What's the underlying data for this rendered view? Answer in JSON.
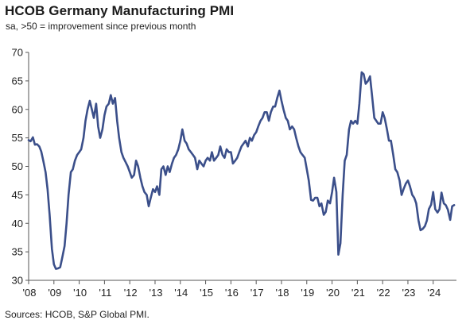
{
  "title": "HCOB Germany Manufacturing PMI",
  "subtitle": "sa, >50 = improvement since previous month",
  "source": "Sources: HCOB, S&P Global PMI.",
  "colors": {
    "line": "#3b4f8a",
    "axis": "#555555",
    "grid": "#d9d9d9"
  },
  "chart_data": {
    "type": "line",
    "title": "HCOB Germany Manufacturing PMI",
    "subtitle": "sa, >50 = improvement since previous month",
    "xlabel": "",
    "ylabel": "",
    "ylim": [
      30,
      70
    ],
    "yticks": [
      30,
      35,
      40,
      45,
      50,
      55,
      60,
      65,
      70
    ],
    "xlim": [
      2008.0,
      2024.92
    ],
    "xtick_values": [
      2008,
      2009,
      2010,
      2011,
      2012,
      2013,
      2014,
      2015,
      2016,
      2017,
      2018,
      2019,
      2020,
      2021,
      2022,
      2023,
      2024
    ],
    "xtick_labels": [
      "'08",
      "'09",
      "'10",
      "'11",
      "'12",
      "'13",
      "'14",
      "'15",
      "'16",
      "'17",
      "'18",
      "'19",
      "'20",
      "'21",
      "'22",
      "'23",
      "'24"
    ],
    "grid": false,
    "series": [
      {
        "points": [
          [
            2008.0,
            54.6
          ],
          [
            2008.08,
            54.4
          ],
          [
            2008.17,
            55.1
          ],
          [
            2008.25,
            53.8
          ],
          [
            2008.33,
            53.9
          ],
          [
            2008.42,
            53.5
          ],
          [
            2008.5,
            52.6
          ],
          [
            2008.58,
            51.0
          ],
          [
            2008.67,
            49.0
          ],
          [
            2008.75,
            46.0
          ],
          [
            2008.83,
            41.5
          ],
          [
            2008.92,
            35.5
          ],
          [
            2009.0,
            32.8
          ],
          [
            2009.08,
            32.0
          ],
          [
            2009.17,
            32.1
          ],
          [
            2009.25,
            32.3
          ],
          [
            2009.33,
            34.0
          ],
          [
            2009.42,
            36.0
          ],
          [
            2009.5,
            40.0
          ],
          [
            2009.58,
            45.0
          ],
          [
            2009.67,
            49.0
          ],
          [
            2009.75,
            49.5
          ],
          [
            2009.83,
            51.0
          ],
          [
            2009.92,
            52.0
          ],
          [
            2010.0,
            52.5
          ],
          [
            2010.08,
            53.0
          ],
          [
            2010.17,
            55.0
          ],
          [
            2010.25,
            58.0
          ],
          [
            2010.33,
            60.0
          ],
          [
            2010.42,
            61.5
          ],
          [
            2010.5,
            60.0
          ],
          [
            2010.58,
            58.5
          ],
          [
            2010.67,
            61.0
          ],
          [
            2010.75,
            57.0
          ],
          [
            2010.83,
            55.0
          ],
          [
            2010.92,
            56.5
          ],
          [
            2011.0,
            59.0
          ],
          [
            2011.08,
            60.5
          ],
          [
            2011.17,
            61.0
          ],
          [
            2011.25,
            62.5
          ],
          [
            2011.33,
            61.0
          ],
          [
            2011.42,
            62.0
          ],
          [
            2011.5,
            58.0
          ],
          [
            2011.58,
            55.0
          ],
          [
            2011.67,
            52.5
          ],
          [
            2011.75,
            51.5
          ],
          [
            2011.83,
            50.8
          ],
          [
            2011.92,
            50.0
          ],
          [
            2012.0,
            49.0
          ],
          [
            2012.08,
            48.0
          ],
          [
            2012.17,
            48.5
          ],
          [
            2012.25,
            51.0
          ],
          [
            2012.33,
            50.0
          ],
          [
            2012.42,
            48.0
          ],
          [
            2012.5,
            46.5
          ],
          [
            2012.58,
            45.5
          ],
          [
            2012.67,
            45.0
          ],
          [
            2012.75,
            43.0
          ],
          [
            2012.83,
            44.5
          ],
          [
            2012.92,
            46.0
          ],
          [
            2013.0,
            45.5
          ],
          [
            2013.08,
            46.5
          ],
          [
            2013.17,
            45.0
          ],
          [
            2013.25,
            49.5
          ],
          [
            2013.33,
            50.0
          ],
          [
            2013.42,
            48.5
          ],
          [
            2013.5,
            50.0
          ],
          [
            2013.58,
            49.0
          ],
          [
            2013.67,
            50.5
          ],
          [
            2013.75,
            51.5
          ],
          [
            2013.83,
            52.0
          ],
          [
            2013.92,
            53.0
          ],
          [
            2014.0,
            54.5
          ],
          [
            2014.08,
            56.5
          ],
          [
            2014.17,
            54.5
          ],
          [
            2014.25,
            54.0
          ],
          [
            2014.33,
            53.0
          ],
          [
            2014.42,
            52.5
          ],
          [
            2014.5,
            52.0
          ],
          [
            2014.58,
            51.5
          ],
          [
            2014.67,
            49.5
          ],
          [
            2014.75,
            51.0
          ],
          [
            2014.83,
            50.5
          ],
          [
            2014.92,
            50.0
          ],
          [
            2015.0,
            51.0
          ],
          [
            2015.08,
            51.5
          ],
          [
            2015.17,
            51.0
          ],
          [
            2015.25,
            52.5
          ],
          [
            2015.33,
            51.0
          ],
          [
            2015.42,
            51.5
          ],
          [
            2015.5,
            52.0
          ],
          [
            2015.58,
            53.5
          ],
          [
            2015.67,
            52.0
          ],
          [
            2015.75,
            51.5
          ],
          [
            2015.83,
            53.0
          ],
          [
            2015.92,
            52.5
          ],
          [
            2016.0,
            52.5
          ],
          [
            2016.08,
            50.5
          ],
          [
            2016.17,
            51.0
          ],
          [
            2016.25,
            51.5
          ],
          [
            2016.33,
            52.5
          ],
          [
            2016.42,
            53.5
          ],
          [
            2016.5,
            54.0
          ],
          [
            2016.58,
            54.5
          ],
          [
            2016.67,
            53.5
          ],
          [
            2016.75,
            55.0
          ],
          [
            2016.83,
            54.5
          ],
          [
            2016.92,
            55.5
          ],
          [
            2017.0,
            56.0
          ],
          [
            2017.08,
            57.0
          ],
          [
            2017.17,
            58.0
          ],
          [
            2017.25,
            58.5
          ],
          [
            2017.33,
            59.5
          ],
          [
            2017.42,
            59.5
          ],
          [
            2017.5,
            58.0
          ],
          [
            2017.58,
            59.5
          ],
          [
            2017.67,
            60.5
          ],
          [
            2017.75,
            60.5
          ],
          [
            2017.83,
            62.0
          ],
          [
            2017.92,
            63.3
          ],
          [
            2018.0,
            61.5
          ],
          [
            2018.08,
            60.0
          ],
          [
            2018.17,
            58.5
          ],
          [
            2018.25,
            58.0
          ],
          [
            2018.33,
            56.5
          ],
          [
            2018.42,
            57.0
          ],
          [
            2018.5,
            56.5
          ],
          [
            2018.58,
            55.0
          ],
          [
            2018.67,
            53.5
          ],
          [
            2018.75,
            52.5
          ],
          [
            2018.83,
            52.0
          ],
          [
            2018.92,
            51.5
          ],
          [
            2019.0,
            49.5
          ],
          [
            2019.08,
            47.5
          ],
          [
            2019.17,
            44.1
          ],
          [
            2019.25,
            44.0
          ],
          [
            2019.33,
            44.5
          ],
          [
            2019.42,
            44.5
          ],
          [
            2019.5,
            43.0
          ],
          [
            2019.58,
            43.5
          ],
          [
            2019.67,
            41.5
          ],
          [
            2019.75,
            42.0
          ],
          [
            2019.83,
            44.0
          ],
          [
            2019.92,
            43.5
          ],
          [
            2020.0,
            45.5
          ],
          [
            2020.08,
            48.0
          ],
          [
            2020.17,
            45.5
          ],
          [
            2020.25,
            34.5
          ],
          [
            2020.33,
            36.5
          ],
          [
            2020.42,
            45.0
          ],
          [
            2020.5,
            51.0
          ],
          [
            2020.58,
            52.0
          ],
          [
            2020.67,
            56.5
          ],
          [
            2020.75,
            58.0
          ],
          [
            2020.83,
            57.5
          ],
          [
            2020.92,
            58.0
          ],
          [
            2021.0,
            57.5
          ],
          [
            2021.08,
            61.0
          ],
          [
            2021.17,
            66.5
          ],
          [
            2021.25,
            66.2
          ],
          [
            2021.33,
            64.5
          ],
          [
            2021.42,
            65.0
          ],
          [
            2021.5,
            65.8
          ],
          [
            2021.58,
            62.5
          ],
          [
            2021.67,
            58.5
          ],
          [
            2021.75,
            58.0
          ],
          [
            2021.83,
            57.5
          ],
          [
            2021.92,
            57.5
          ],
          [
            2022.0,
            59.5
          ],
          [
            2022.08,
            58.5
          ],
          [
            2022.17,
            56.5
          ],
          [
            2022.25,
            54.5
          ],
          [
            2022.33,
            54.5
          ],
          [
            2022.42,
            52.0
          ],
          [
            2022.5,
            49.5
          ],
          [
            2022.58,
            49.0
          ],
          [
            2022.67,
            47.5
          ],
          [
            2022.75,
            45.0
          ],
          [
            2022.83,
            46.0
          ],
          [
            2022.92,
            47.0
          ],
          [
            2023.0,
            47.5
          ],
          [
            2023.08,
            46.5
          ],
          [
            2023.17,
            45.0
          ],
          [
            2023.25,
            44.5
          ],
          [
            2023.33,
            43.5
          ],
          [
            2023.42,
            40.5
          ],
          [
            2023.5,
            38.8
          ],
          [
            2023.58,
            39.0
          ],
          [
            2023.67,
            39.5
          ],
          [
            2023.75,
            40.5
          ],
          [
            2023.83,
            42.5
          ],
          [
            2023.92,
            43.3
          ],
          [
            2024.0,
            45.5
          ],
          [
            2024.08,
            42.5
          ],
          [
            2024.17,
            41.9
          ],
          [
            2024.25,
            42.5
          ],
          [
            2024.33,
            45.4
          ],
          [
            2024.42,
            43.5
          ],
          [
            2024.5,
            43.2
          ],
          [
            2024.58,
            42.4
          ],
          [
            2024.67,
            40.6
          ],
          [
            2024.75,
            43.0
          ],
          [
            2024.83,
            43.2
          ]
        ]
      }
    ]
  }
}
